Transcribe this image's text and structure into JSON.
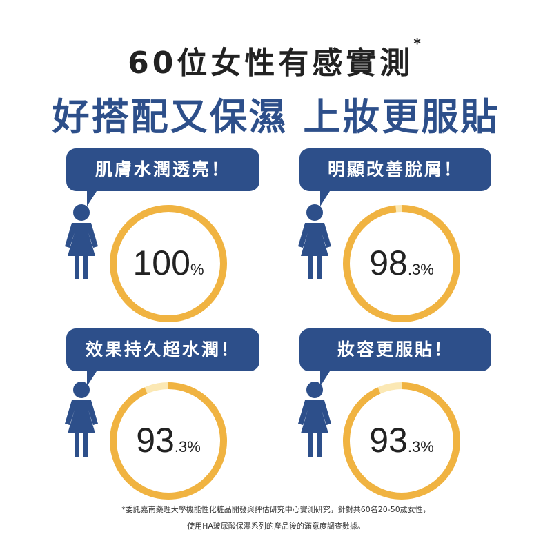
{
  "header": {
    "title": "60位女性有感實測",
    "title_mark": "*",
    "subtitle": "好搭配又保濕 上妝更服貼"
  },
  "stats": [
    {
      "label": "肌膚水潤透亮！",
      "value": "100",
      "unit": "%",
      "percent": 100
    },
    {
      "label": "明顯改善脫屑！",
      "value": "98",
      "unit": ".3%",
      "percent": 98.3
    },
    {
      "label": "效果持久超水潤！",
      "value": "93",
      "unit": ".3%",
      "percent": 93.3
    },
    {
      "label": "妝容更服貼！",
      "value": "93",
      "unit": ".3%",
      "percent": 93.3
    }
  ],
  "footnote": {
    "line1": "*委託嘉南藥理大學機能性化粧品開發與評估研究中心實測研究，針對共60名20-50歲女性，",
    "line2": "使用HA玻尿酸保濕系列的產品後的滿意度調查數據。"
  },
  "colors": {
    "brand_blue": "#2d4f8a",
    "ring_orange": "#f0b341",
    "ring_track": "#fbe8b4",
    "text_dark": "#222222"
  },
  "icons": [
    "person-icon"
  ]
}
